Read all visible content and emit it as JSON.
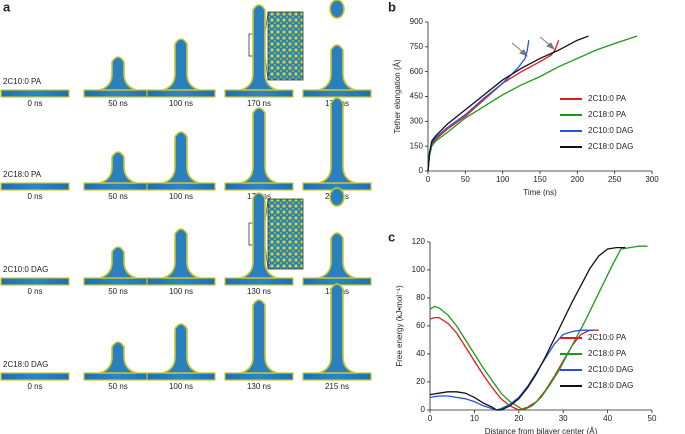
{
  "panel_labels": [
    "a",
    "b",
    "c"
  ],
  "snapshots": {
    "rows": [
      {
        "label": "2C10:0 PA",
        "times": [
          "0 ns",
          "50 ns",
          "100 ns",
          "170 ns",
          "175 ns"
        ]
      },
      {
        "label": "2C18:0 PA",
        "times": [
          "0 ns",
          "50 ns",
          "100 ns",
          "170 ns",
          "280 ns"
        ]
      },
      {
        "label": "2C10:0 DAG",
        "times": [
          "0 ns",
          "50 ns",
          "100 ns",
          "130 ns",
          "135 ns"
        ]
      },
      {
        "label": "2C18:0 DAG",
        "times": [
          "0 ns",
          "50 ns",
          "100 ns",
          "130 ns",
          "215 ns"
        ]
      }
    ]
  },
  "chart_data": [
    {
      "type": "line",
      "xlabel": "Time (ns)",
      "ylabel": "Tether elongation (Å)",
      "xlim": [
        0,
        300
      ],
      "xticks": [
        0,
        50,
        100,
        150,
        200,
        250,
        300
      ],
      "ylim": [
        0,
        900
      ],
      "yticks": [
        0,
        150,
        300,
        450,
        600,
        750,
        900
      ],
      "legend": "lower right",
      "series": [
        {
          "name": "2C10:0 PA",
          "color": "#e41a1c",
          "x": [
            0,
            2,
            5,
            10,
            25,
            50,
            75,
            100,
            125,
            150,
            165,
            170,
            175
          ],
          "values": [
            0,
            100,
            160,
            190,
            250,
            330,
            430,
            530,
            600,
            660,
            700,
            730,
            790
          ]
        },
        {
          "name": "2C18:0 PA",
          "color": "#1a9a1a",
          "x": [
            0,
            2,
            5,
            10,
            25,
            50,
            75,
            100,
            125,
            150,
            175,
            200,
            225,
            250,
            280
          ],
          "values": [
            0,
            90,
            150,
            180,
            230,
            320,
            390,
            460,
            520,
            570,
            630,
            680,
            730,
            770,
            815
          ]
        },
        {
          "name": "2C10:0 DAG",
          "color": "#2255dd",
          "x": [
            0,
            2,
            5,
            10,
            25,
            50,
            75,
            100,
            120,
            130,
            133,
            135
          ],
          "values": [
            0,
            100,
            170,
            200,
            260,
            340,
            440,
            530,
            620,
            680,
            730,
            790
          ]
        },
        {
          "name": "2C18:0 DAG",
          "color": "#111111",
          "x": [
            0,
            2,
            5,
            10,
            25,
            50,
            75,
            100,
            125,
            150,
            175,
            200,
            215
          ],
          "values": [
            0,
            110,
            180,
            210,
            280,
            370,
            460,
            550,
            620,
            680,
            730,
            790,
            815
          ]
        }
      ]
    },
    {
      "type": "line",
      "xlabel": "Distance from bilayer center (Å)",
      "ylabel": "Free energy (kJ•mol⁻¹)",
      "xlim": [
        0,
        50
      ],
      "xticks": [
        0,
        10,
        20,
        30,
        40,
        50
      ],
      "ylim": [
        0,
        120
      ],
      "yticks": [
        0,
        20,
        40,
        60,
        80,
        100,
        120
      ],
      "legend": "lower right",
      "series": [
        {
          "name": "2C10:0 PA",
          "color": "#e41a1c",
          "x": [
            0,
            1,
            2,
            4,
            6,
            8,
            10,
            12,
            14,
            16,
            18,
            20,
            22,
            24,
            26,
            28,
            30,
            32,
            34,
            36,
            38
          ],
          "values": [
            65,
            66,
            66,
            62,
            55,
            45,
            35,
            25,
            16,
            8,
            3,
            0,
            2,
            6,
            14,
            24,
            35,
            46,
            54,
            57,
            57
          ]
        },
        {
          "name": "2C18:0 PA",
          "color": "#1a9a1a",
          "x": [
            0,
            1,
            2,
            4,
            6,
            8,
            10,
            12,
            14,
            16,
            18,
            20,
            21,
            23,
            25,
            27,
            29,
            31,
            33,
            35,
            37,
            39,
            41,
            43,
            45,
            47,
            49
          ],
          "values": [
            72,
            74,
            73,
            68,
            60,
            50,
            40,
            30,
            21,
            12,
            6,
            2,
            0,
            3,
            9,
            18,
            28,
            40,
            52,
            64,
            77,
            90,
            103,
            115,
            116,
            117,
            117
          ]
        },
        {
          "name": "2C10:0 DAG",
          "color": "#2255dd",
          "x": [
            0,
            2,
            4,
            6,
            8,
            10,
            12,
            14,
            15,
            16,
            18,
            20,
            22,
            24,
            26,
            28,
            30,
            32,
            34,
            36,
            37
          ],
          "values": [
            9,
            10,
            10,
            9,
            8,
            6,
            3,
            1,
            0,
            1,
            4,
            9,
            17,
            27,
            37,
            47,
            54,
            56,
            57,
            57,
            57
          ]
        },
        {
          "name": "2C18:0 DAG",
          "color": "#111111",
          "x": [
            0,
            2,
            4,
            6,
            8,
            10,
            12,
            14,
            15,
            16,
            18,
            20,
            22,
            24,
            26,
            28,
            30,
            32,
            34,
            36,
            38,
            40,
            42,
            44
          ],
          "values": [
            11,
            12,
            13,
            13,
            12,
            9,
            5,
            2,
            0,
            0,
            3,
            8,
            16,
            26,
            38,
            51,
            64,
            77,
            89,
            101,
            110,
            115,
            116,
            116
          ]
        }
      ]
    }
  ]
}
